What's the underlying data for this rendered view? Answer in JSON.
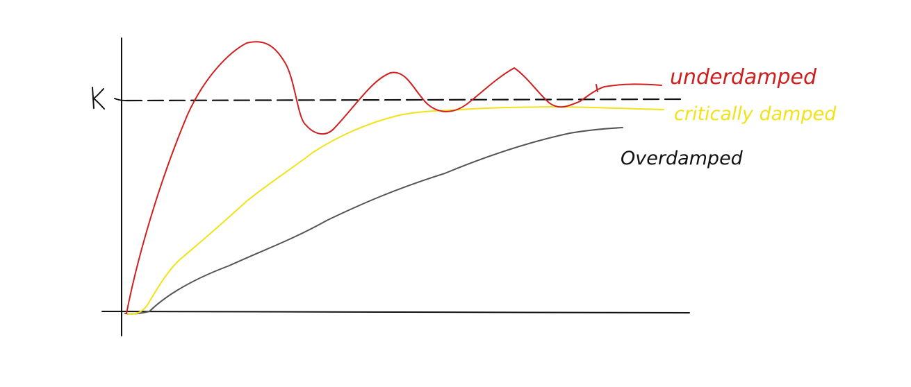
{
  "axis_marker": {
    "label": "K"
  },
  "curves": [
    {
      "key": "underdamped",
      "label": "underdamped",
      "color": "#d01f1f"
    },
    {
      "key": "critically",
      "label": "critically damped",
      "color": "#f1e21a"
    },
    {
      "key": "overdamped",
      "label": "Overdamped",
      "color": "#555555"
    }
  ],
  "colors": {
    "axis": "#111111",
    "reference_line": "#111111",
    "label_overdamped": "#111111"
  }
}
